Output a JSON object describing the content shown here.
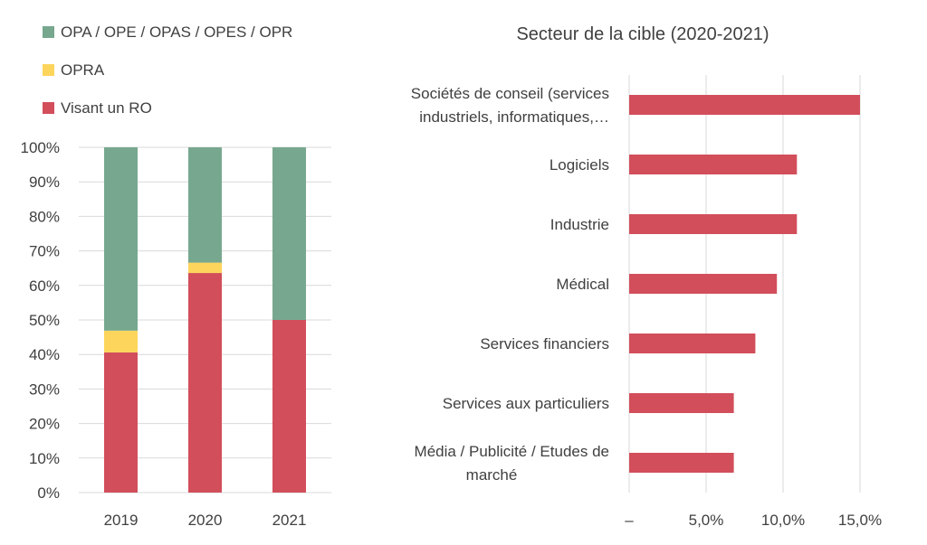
{
  "chart_data": [
    {
      "type": "bar",
      "stacked": true,
      "orientation": "vertical",
      "title": "",
      "categories": [
        "2019",
        "2020",
        "2021"
      ],
      "series": [
        {
          "name": "Visant un RO",
          "values": [
            40.6,
            63.6,
            50.0
          ],
          "color": "#D24E5B"
        },
        {
          "name": "OPRA",
          "values": [
            6.3,
            3.0,
            0.0
          ],
          "color": "#FDD55C"
        },
        {
          "name": "OPA / OPE / OPAS / OPES / OPR",
          "values": [
            53.1,
            33.4,
            50.0
          ],
          "color": "#77A88F"
        }
      ],
      "ylim": [
        0,
        100
      ],
      "yticks": [
        "0%",
        "10%",
        "20%",
        "30%",
        "40%",
        "50%",
        "60%",
        "70%",
        "80%",
        "90%",
        "100%"
      ],
      "legend_placement": "top-left",
      "grid": true
    },
    {
      "type": "bar",
      "orientation": "horizontal",
      "title": "Secteur de la cible (2020-2021)",
      "categories": [
        "Sociétés de conseil (services industriels, informatiques,…",
        "Logiciels",
        "Industrie",
        "Médical",
        "Services financiers",
        "Services aux particuliers",
        "Média / Publicité / Etudes de marché"
      ],
      "category_lines": [
        [
          "Sociétés de conseil (services",
          "industriels, informatiques,…"
        ],
        [
          "Logiciels"
        ],
        [
          "Industrie"
        ],
        [
          "Médical"
        ],
        [
          "Services financiers"
        ],
        [
          "Services aux particuliers"
        ],
        [
          "Média / Publicité / Etudes de",
          "marché"
        ]
      ],
      "values": [
        15.0,
        10.9,
        10.9,
        9.6,
        8.2,
        6.8,
        6.8
      ],
      "color": "#D24E5B",
      "xlim": [
        0,
        16.5
      ],
      "xticks": [
        0,
        5,
        10,
        15
      ],
      "xtick_labels": [
        "–",
        "5,0%",
        "10,0%",
        "15,0%"
      ],
      "grid": true
    }
  ]
}
